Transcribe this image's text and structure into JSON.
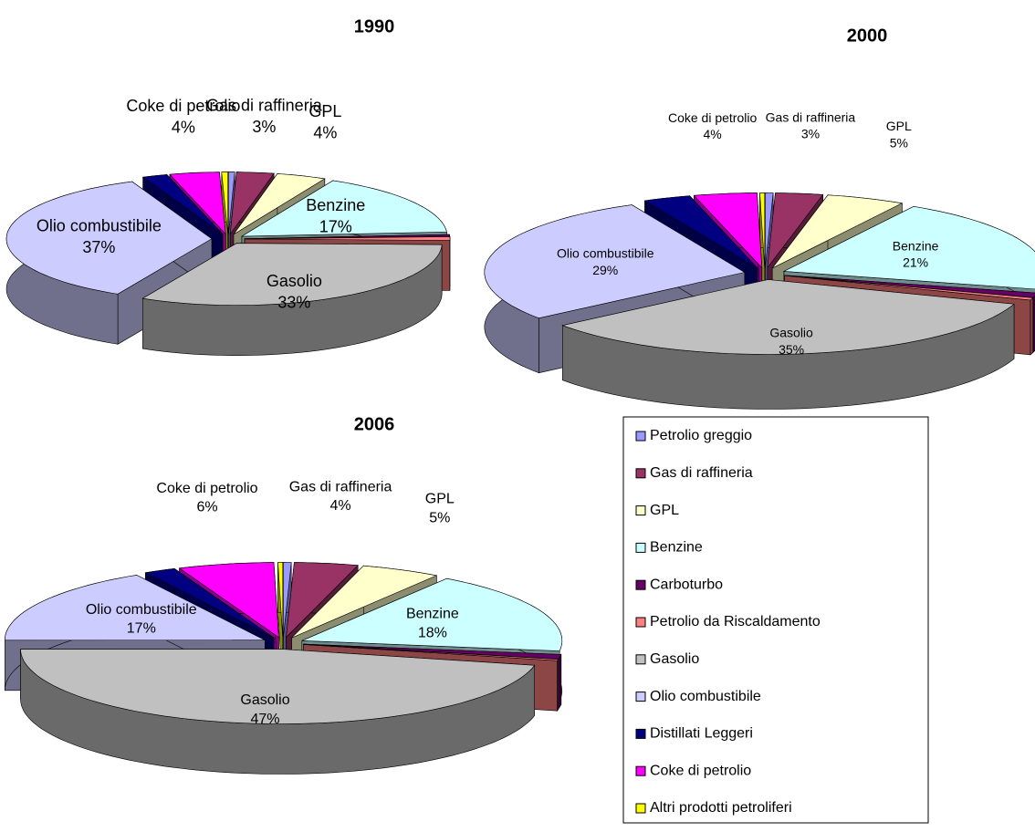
{
  "chart_data": [
    {
      "type": "pie",
      "title": "1990",
      "categories": [
        "Petrolio greggio",
        "Gas di raffineria",
        "GPL",
        "Benzine",
        "Carboturbo",
        "Petrolio da Riscaldamento",
        "Gasolio",
        "Olio combustibile",
        "Distillati Leggeri",
        "Coke di petrolio",
        "Altri prodotti petroliferi"
      ],
      "colors": [
        "#9999ff",
        "#993366",
        "#ffffcc",
        "#ccffff",
        "#660066",
        "#ff8080",
        "#c0c0c0",
        "#ccccff",
        "#000080",
        "#ff00ff",
        "#ffff00"
      ],
      "values": [
        0.5,
        3,
        4,
        17,
        0.5,
        1,
        33,
        37,
        2,
        4,
        0.5
      ],
      "value_labels": [
        null,
        "3%",
        "4%",
        "17%",
        null,
        null,
        "33%",
        "37%",
        null,
        "4%",
        null
      ]
    },
    {
      "type": "pie",
      "title": "2000",
      "categories": [
        "Petrolio greggio",
        "Gas di raffineria",
        "GPL",
        "Benzine",
        "Carboturbo",
        "Petrolio da Riscaldamento",
        "Gasolio",
        "Olio combustibile",
        "Distillati Leggeri",
        "Coke di petrolio",
        "Altri prodotti petroliferi"
      ],
      "colors": [
        "#9999ff",
        "#993366",
        "#ffffcc",
        "#ccffff",
        "#660066",
        "#ff8080",
        "#c0c0c0",
        "#ccccff",
        "#000080",
        "#ff00ff",
        "#ffff00"
      ],
      "values": [
        0.5,
        3,
        5,
        21,
        1,
        0.5,
        35,
        29,
        3,
        4,
        0.3
      ],
      "value_labels": [
        null,
        "3%",
        "5%",
        "21%",
        null,
        null,
        "35%",
        "29%",
        null,
        "4%",
        null
      ]
    },
    {
      "type": "pie",
      "title": "2006",
      "categories": [
        "Petrolio greggio",
        "Gas di raffineria",
        "GPL",
        "Benzine",
        "Carboturbo",
        "Petrolio da Riscaldamento",
        "Gasolio",
        "Olio combustibile",
        "Distillati Leggeri",
        "Coke di petrolio",
        "Altri prodotti petroliferi"
      ],
      "colors": [
        "#9999ff",
        "#993366",
        "#ffffcc",
        "#ccffff",
        "#660066",
        "#ff8080",
        "#c0c0c0",
        "#ccccff",
        "#000080",
        "#ff00ff",
        "#ffff00"
      ],
      "values": [
        0.5,
        4,
        5,
        18,
        1,
        0.3,
        47,
        17,
        2,
        6,
        0.3
      ],
      "value_labels": [
        null,
        "4%",
        "5%",
        "18%",
        null,
        null,
        "47%",
        "17%",
        null,
        "6%",
        null
      ]
    }
  ]
}
